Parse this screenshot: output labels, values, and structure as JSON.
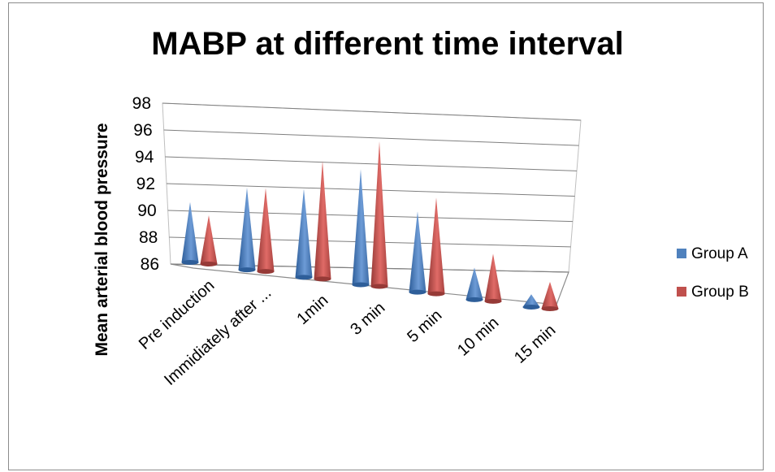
{
  "chart_data": {
    "type": "bar",
    "bar_shape": "3d-cone",
    "title": "MABP at different time interval",
    "xlabel": "",
    "ylabel": "Mean arterial  blood pressure",
    "categories": [
      "Pre induction",
      "Immidiately after ...",
      "1min",
      "3 min",
      "5 min",
      "10 min",
      "15 min"
    ],
    "ylim": [
      86,
      98
    ],
    "yticks": [
      "98",
      "96",
      "94",
      "92",
      "90",
      "88",
      "86"
    ],
    "series": [
      {
        "name": "Group A",
        "color": "#4f81bd",
        "values": [
          90.7,
          92.4,
          92.9,
          95.0,
          92.3,
          88.5,
          87.0
        ]
      },
      {
        "name": "Group B",
        "color": "#c0504d",
        "values": [
          89.8,
          92.5,
          95.2,
          97.3,
          93.5,
          89.7,
          88.1
        ]
      }
    ],
    "grid": true,
    "legend_position": "right"
  }
}
